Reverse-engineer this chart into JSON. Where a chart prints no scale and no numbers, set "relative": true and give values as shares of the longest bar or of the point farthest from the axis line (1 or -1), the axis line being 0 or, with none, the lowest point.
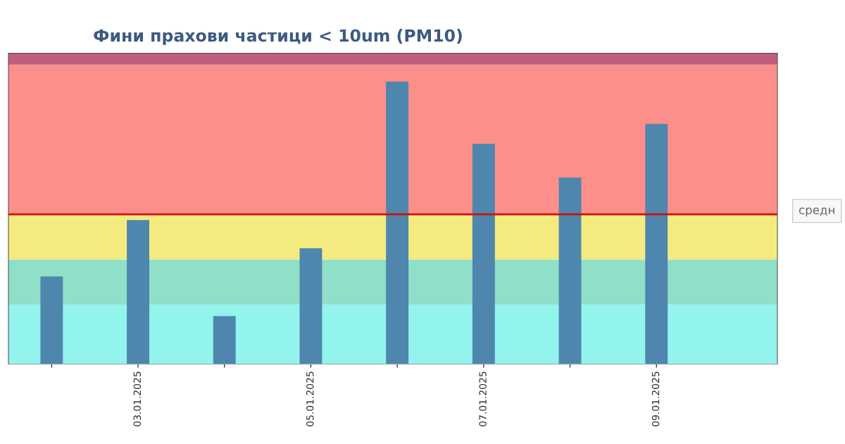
{
  "chart_data": {
    "type": "bar",
    "title": "Фини прахови частици < 10um (PM10)",
    "categories": [
      null,
      "03.01.2025",
      null,
      "05.01.2025",
      null,
      "07.01.2025",
      null,
      "09.01.2025"
    ],
    "values": [
      0.31,
      0.51,
      0.17,
      0.41,
      1,
      0.78,
      0.66,
      0.85
    ],
    "color": "#4e86ad",
    "relative": true,
    "bands": [
      {
        "axis": "y",
        "from": 0,
        "to": 0.21,
        "color": "#93f4ee"
      },
      {
        "axis": "y",
        "from": 0.21,
        "to": 0.37,
        "color": "#90dfc9"
      },
      {
        "axis": "y",
        "from": 0.37,
        "to": 0.53,
        "color": "#f4eb80"
      },
      {
        "axis": "y",
        "from": 0.53,
        "to": 1.06,
        "color": "#fd8f8b"
      },
      {
        "axis": "y",
        "from": 1.06,
        "to": 1.1,
        "color": "#bf5f7f"
      }
    ],
    "ref_lines": [
      {
        "axis": "y",
        "value": 0.53,
        "color": "#cc1010",
        "line_style": "solid"
      }
    ],
    "annotations": [
      "средн"
    ]
  }
}
